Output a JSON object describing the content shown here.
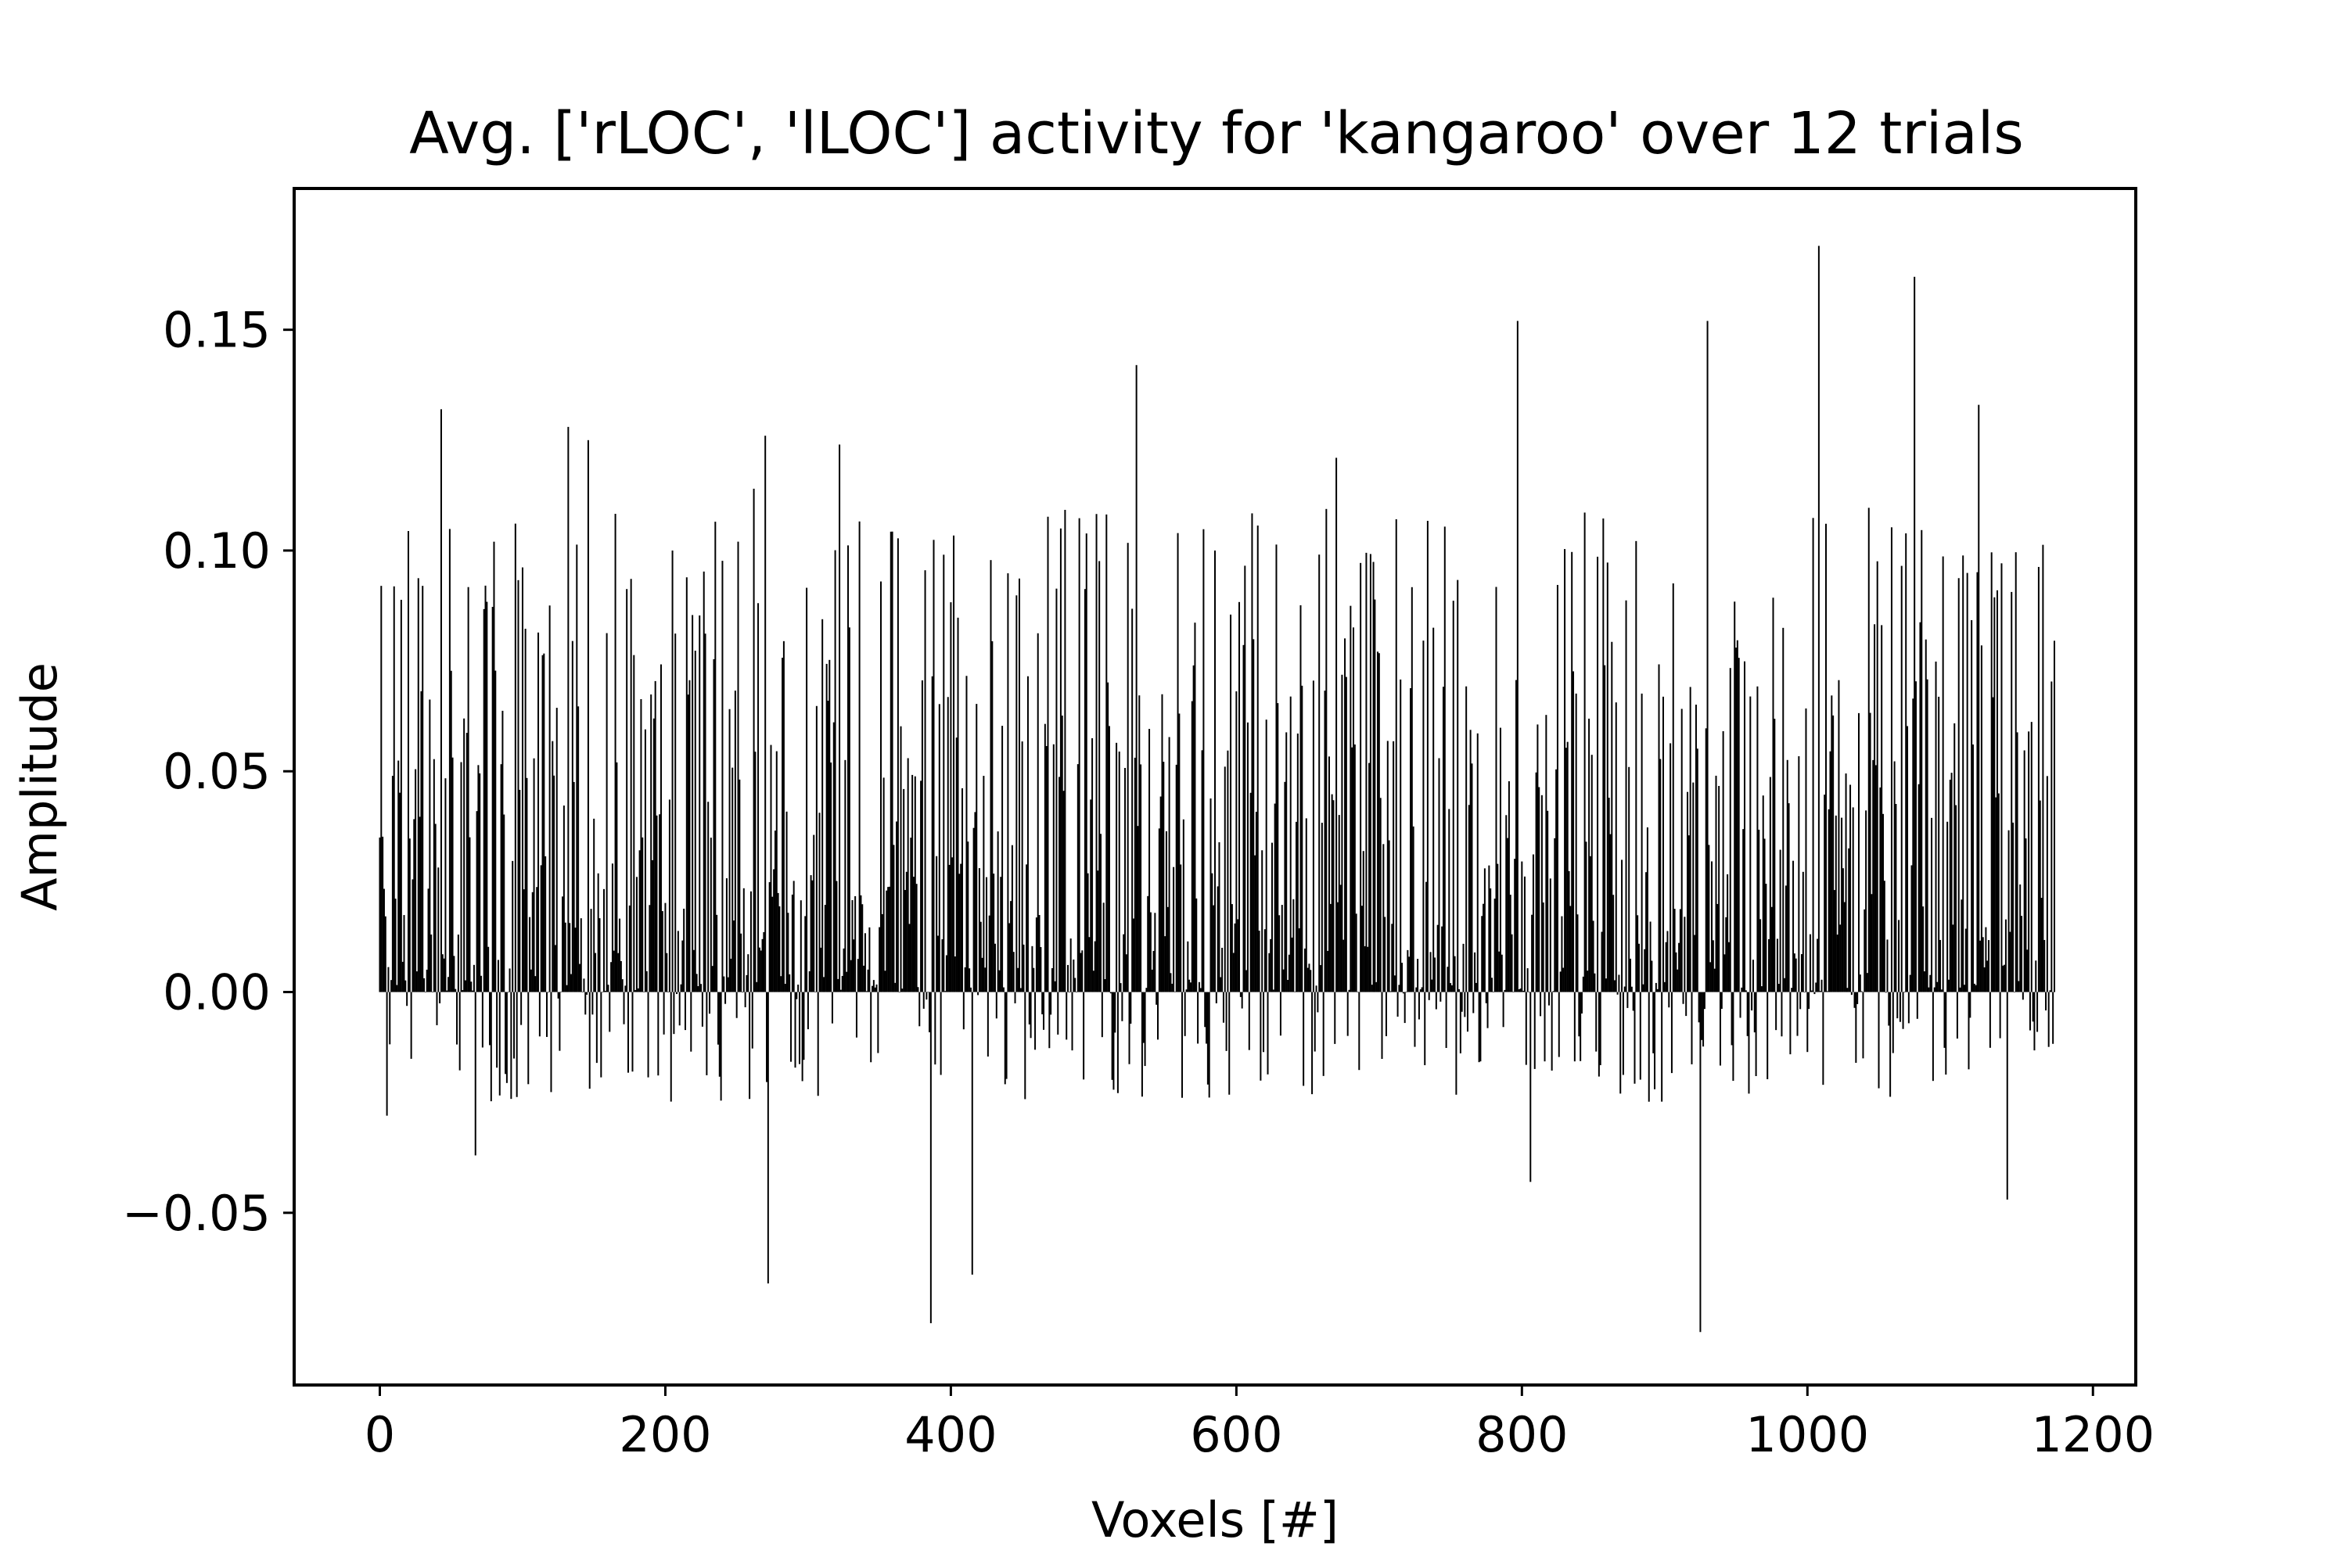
{
  "chart_data": {
    "type": "bar",
    "title": "Avg. ['rLOC', 'lLOC'] activity for 'kangaroo' over 12 trials",
    "xlabel": "Voxels [#]",
    "ylabel": "Amplitude",
    "xlim": [
      -60,
      1230
    ],
    "ylim": [
      -0.089,
      0.182
    ],
    "x_ticks": [
      0,
      200,
      400,
      600,
      800,
      1000,
      1200
    ],
    "x_tick_labels": [
      "0",
      "200",
      "400",
      "600",
      "800",
      "1000",
      "1200"
    ],
    "y_ticks": [
      -0.05,
      0.0,
      0.05,
      0.1,
      0.15
    ],
    "y_tick_labels": [
      "−0.05",
      "0.00",
      "0.05",
      "0.10",
      "0.15"
    ],
    "grid": false,
    "bar_color": "#000000",
    "n_bars": 1174,
    "series": [
      {
        "values_approx_key": [
          [
            0,
            0.035
          ],
          [
            5,
            -0.028
          ],
          [
            30,
            0.092
          ],
          [
            43,
            0.132
          ],
          [
            67,
            -0.037
          ],
          [
            80,
            0.102
          ],
          [
            132,
            0.128
          ],
          [
            146,
            0.125
          ],
          [
            205,
            0.1
          ],
          [
            262,
            0.114
          ],
          [
            270,
            0.126
          ],
          [
            272,
            -0.066
          ],
          [
            322,
            0.124
          ],
          [
            386,
            -0.075
          ],
          [
            415,
            -0.064
          ],
          [
            530,
            0.142
          ],
          [
            585,
            0.1
          ],
          [
            670,
            0.121
          ],
          [
            797,
            0.152
          ],
          [
            806,
            -0.043
          ],
          [
            925,
            -0.077
          ],
          [
            930,
            0.152
          ],
          [
            1008,
            0.169
          ],
          [
            1075,
            0.162
          ],
          [
            1120,
            0.133
          ],
          [
            1140,
            -0.047
          ],
          [
            1174,
            0.016
          ]
        ]
      }
    ]
  }
}
